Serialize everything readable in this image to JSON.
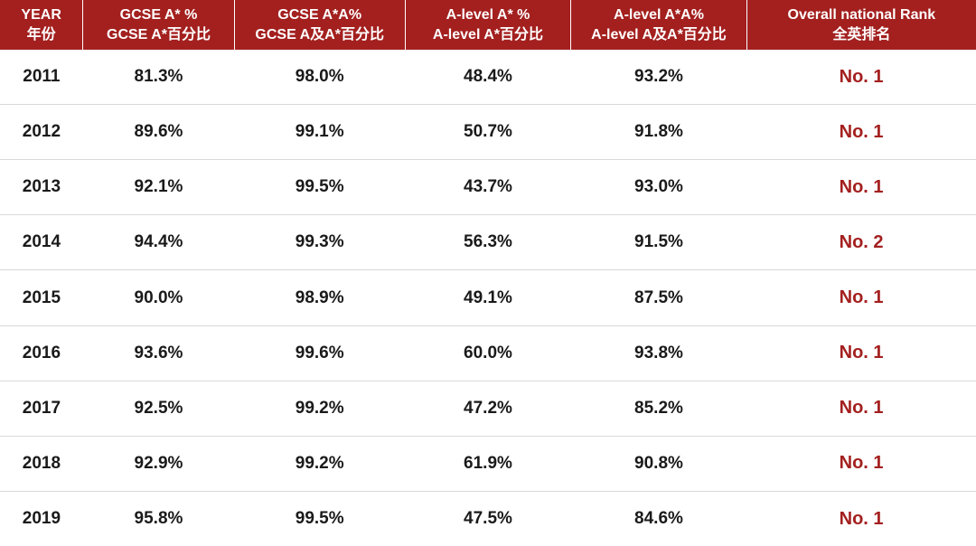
{
  "table": {
    "type": "table",
    "header_bg": "#a3201f",
    "header_color": "#ffffff",
    "body_text_color": "#1a1a1a",
    "rank_text_color": "#a3201f",
    "row_border_color": "#d9d9d9",
    "header_fontsize": 16,
    "body_fontsize": 19,
    "columns": [
      {
        "en": "YEAR",
        "zh": "年份",
        "width_pct": 8.5
      },
      {
        "en": "GCSE A* %",
        "zh": "GCSE A*百分比",
        "width_pct": 15.5
      },
      {
        "en": "GCSE A*A%",
        "zh": "GCSE A及A*百分比",
        "width_pct": 17.5
      },
      {
        "en": "A-level A* %",
        "zh": "A-level A*百分比",
        "width_pct": 17
      },
      {
        "en": "A-level A*A%",
        "zh": "A-level A及A*百分比",
        "width_pct": 18
      },
      {
        "en": "Overall national Rank",
        "zh": "全英排名",
        "width_pct": 23.5
      }
    ],
    "rows": [
      {
        "year": "2011",
        "gcse_astar": "81.3%",
        "gcse_aa": "98.0%",
        "al_astar": "48.4%",
        "al_aa": "93.2%",
        "rank": "No. 1"
      },
      {
        "year": "2012",
        "gcse_astar": "89.6%",
        "gcse_aa": "99.1%",
        "al_astar": "50.7%",
        "al_aa": "91.8%",
        "rank": "No. 1"
      },
      {
        "year": "2013",
        "gcse_astar": "92.1%",
        "gcse_aa": "99.5%",
        "al_astar": "43.7%",
        "al_aa": "93.0%",
        "rank": "No. 1"
      },
      {
        "year": "2014",
        "gcse_astar": "94.4%",
        "gcse_aa": "99.3%",
        "al_astar": "56.3%",
        "al_aa": "91.5%",
        "rank": "No. 2"
      },
      {
        "year": "2015",
        "gcse_astar": "90.0%",
        "gcse_aa": "98.9%",
        "al_astar": "49.1%",
        "al_aa": "87.5%",
        "rank": "No. 1"
      },
      {
        "year": "2016",
        "gcse_astar": "93.6%",
        "gcse_aa": "99.6%",
        "al_astar": "60.0%",
        "al_aa": "93.8%",
        "rank": "No. 1"
      },
      {
        "year": "2017",
        "gcse_astar": "92.5%",
        "gcse_aa": "99.2%",
        "al_astar": "47.2%",
        "al_aa": "85.2%",
        "rank": "No. 1"
      },
      {
        "year": "2018",
        "gcse_astar": "92.9%",
        "gcse_aa": "99.2%",
        "al_astar": "61.9%",
        "al_aa": "90.8%",
        "rank": "No. 1"
      },
      {
        "year": "2019",
        "gcse_astar": "95.8%",
        "gcse_aa": "99.5%",
        "al_astar": "47.5%",
        "al_aa": "84.6%",
        "rank": "No. 1"
      }
    ]
  }
}
